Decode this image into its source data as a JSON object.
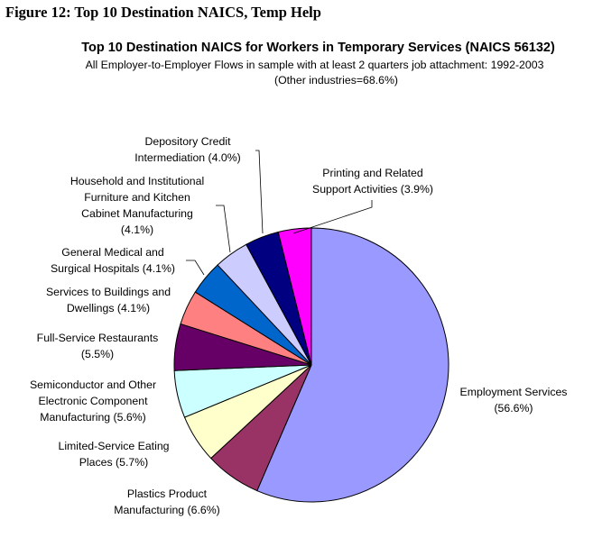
{
  "figure_caption": "Figure 12: Top 10 Destination NAICS, Temp Help",
  "chart_data": {
    "type": "pie",
    "title": "Top 10 Destination NAICS for Workers in Temporary Services (NAICS 56132)",
    "subtitle": "All Employer-to-Employer Flows in sample with at least 2 quarters job attachment: 1992-2003",
    "note": "(Other industries=68.6%)",
    "start": "12 o'clock, clockwise",
    "slices": [
      {
        "name": "Employment Services",
        "value": 56.6,
        "color": "#9999ff",
        "label": [
          "Employment Services",
          "(56.6%)"
        ]
      },
      {
        "name": "Plastics Product Manufacturing",
        "value": 6.6,
        "color": "#993366",
        "label": [
          "Plastics Product",
          "Manufacturing (6.6%)"
        ]
      },
      {
        "name": "Limited-Service Eating Places",
        "value": 5.7,
        "color": "#ffffcc",
        "label": [
          "Limited-Service Eating",
          "Places (5.7%)"
        ]
      },
      {
        "name": "Semiconductor and Other Electronic Component Manufacturing",
        "value": 5.6,
        "color": "#ccffff",
        "label": [
          "Semiconductor and Other",
          "Electronic Component",
          "Manufacturing (5.6%)"
        ]
      },
      {
        "name": "Full-Service Restaurants",
        "value": 5.5,
        "color": "#660066",
        "label": [
          "Full-Service Restaurants",
          "(5.5%)"
        ]
      },
      {
        "name": "Services to Buildings and Dwellings",
        "value": 4.1,
        "color": "#ff8080",
        "label": [
          "Services to Buildings and",
          "Dwellings (4.1%)"
        ]
      },
      {
        "name": "General Medical and Surgical Hospitals",
        "value": 4.1,
        "color": "#0066cc",
        "label": [
          "General Medical and",
          "Surgical Hospitals (4.1%)"
        ]
      },
      {
        "name": "Household and Institutional Furniture and Kitchen Cabinet Manufacturing",
        "value": 4.1,
        "color": "#ccccff",
        "label": [
          "Household and Institutional",
          "Furniture and Kitchen",
          "Cabinet Manufacturing",
          "(4.1%)"
        ]
      },
      {
        "name": "Depository Credit Intermediation",
        "value": 4.0,
        "color": "#000080",
        "label": [
          "Depository Credit",
          "Intermediation (4.0%)"
        ]
      },
      {
        "name": "Printing and Related Support Activities",
        "value": 3.9,
        "color": "#ff00ff",
        "label": [
          "Printing and Related",
          "Support Activities (3.9%)"
        ]
      }
    ]
  }
}
